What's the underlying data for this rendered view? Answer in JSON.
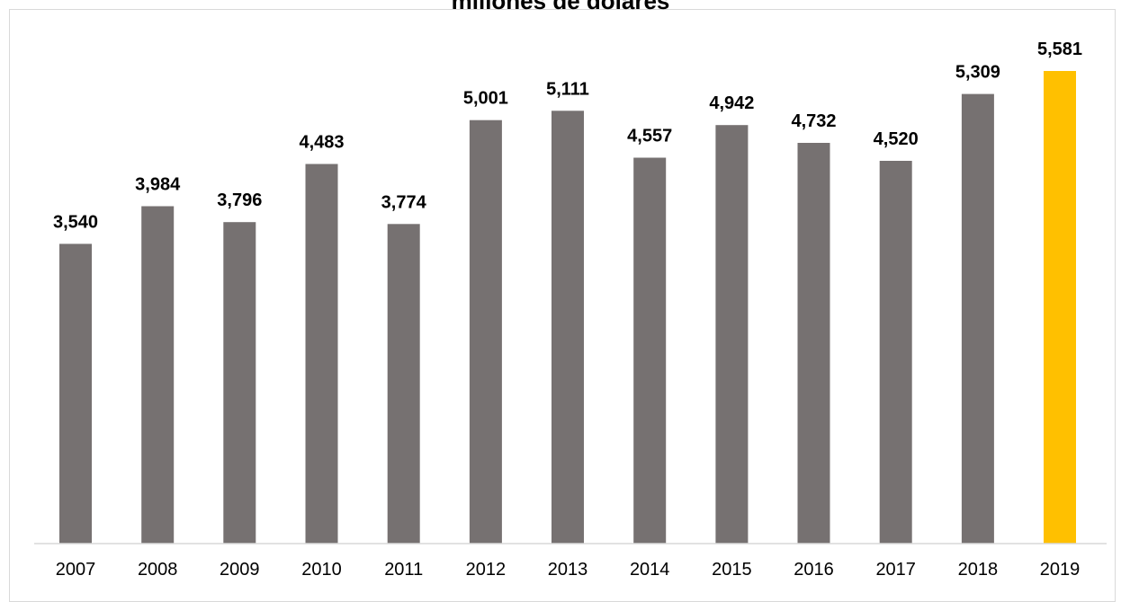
{
  "chart_data": {
    "type": "bar",
    "title": "millones de dólares",
    "xlabel": "",
    "ylabel": "",
    "categories": [
      "2007",
      "2008",
      "2009",
      "2010",
      "2011",
      "2012",
      "2013",
      "2014",
      "2015",
      "2016",
      "2017",
      "2018",
      "2019"
    ],
    "values": [
      3540,
      3984,
      3796,
      4483,
      3774,
      5001,
      5111,
      4557,
      4942,
      4732,
      4520,
      5309,
      5581
    ],
    "data_labels": [
      "3,540",
      "3,984",
      "3,796",
      "4,483",
      "3,774",
      "5,001",
      "5,111",
      "4,557",
      "4,942",
      "4,732",
      "4,520",
      "5,309",
      "5,581"
    ],
    "ylim": [
      0,
      5581
    ],
    "grid": false,
    "legend": "none",
    "colors": {
      "bar": "#767171",
      "highlight_bar": "#ffc000",
      "axis": "#d9d9d9",
      "text": "#000000"
    },
    "highlight_category": "2019"
  }
}
